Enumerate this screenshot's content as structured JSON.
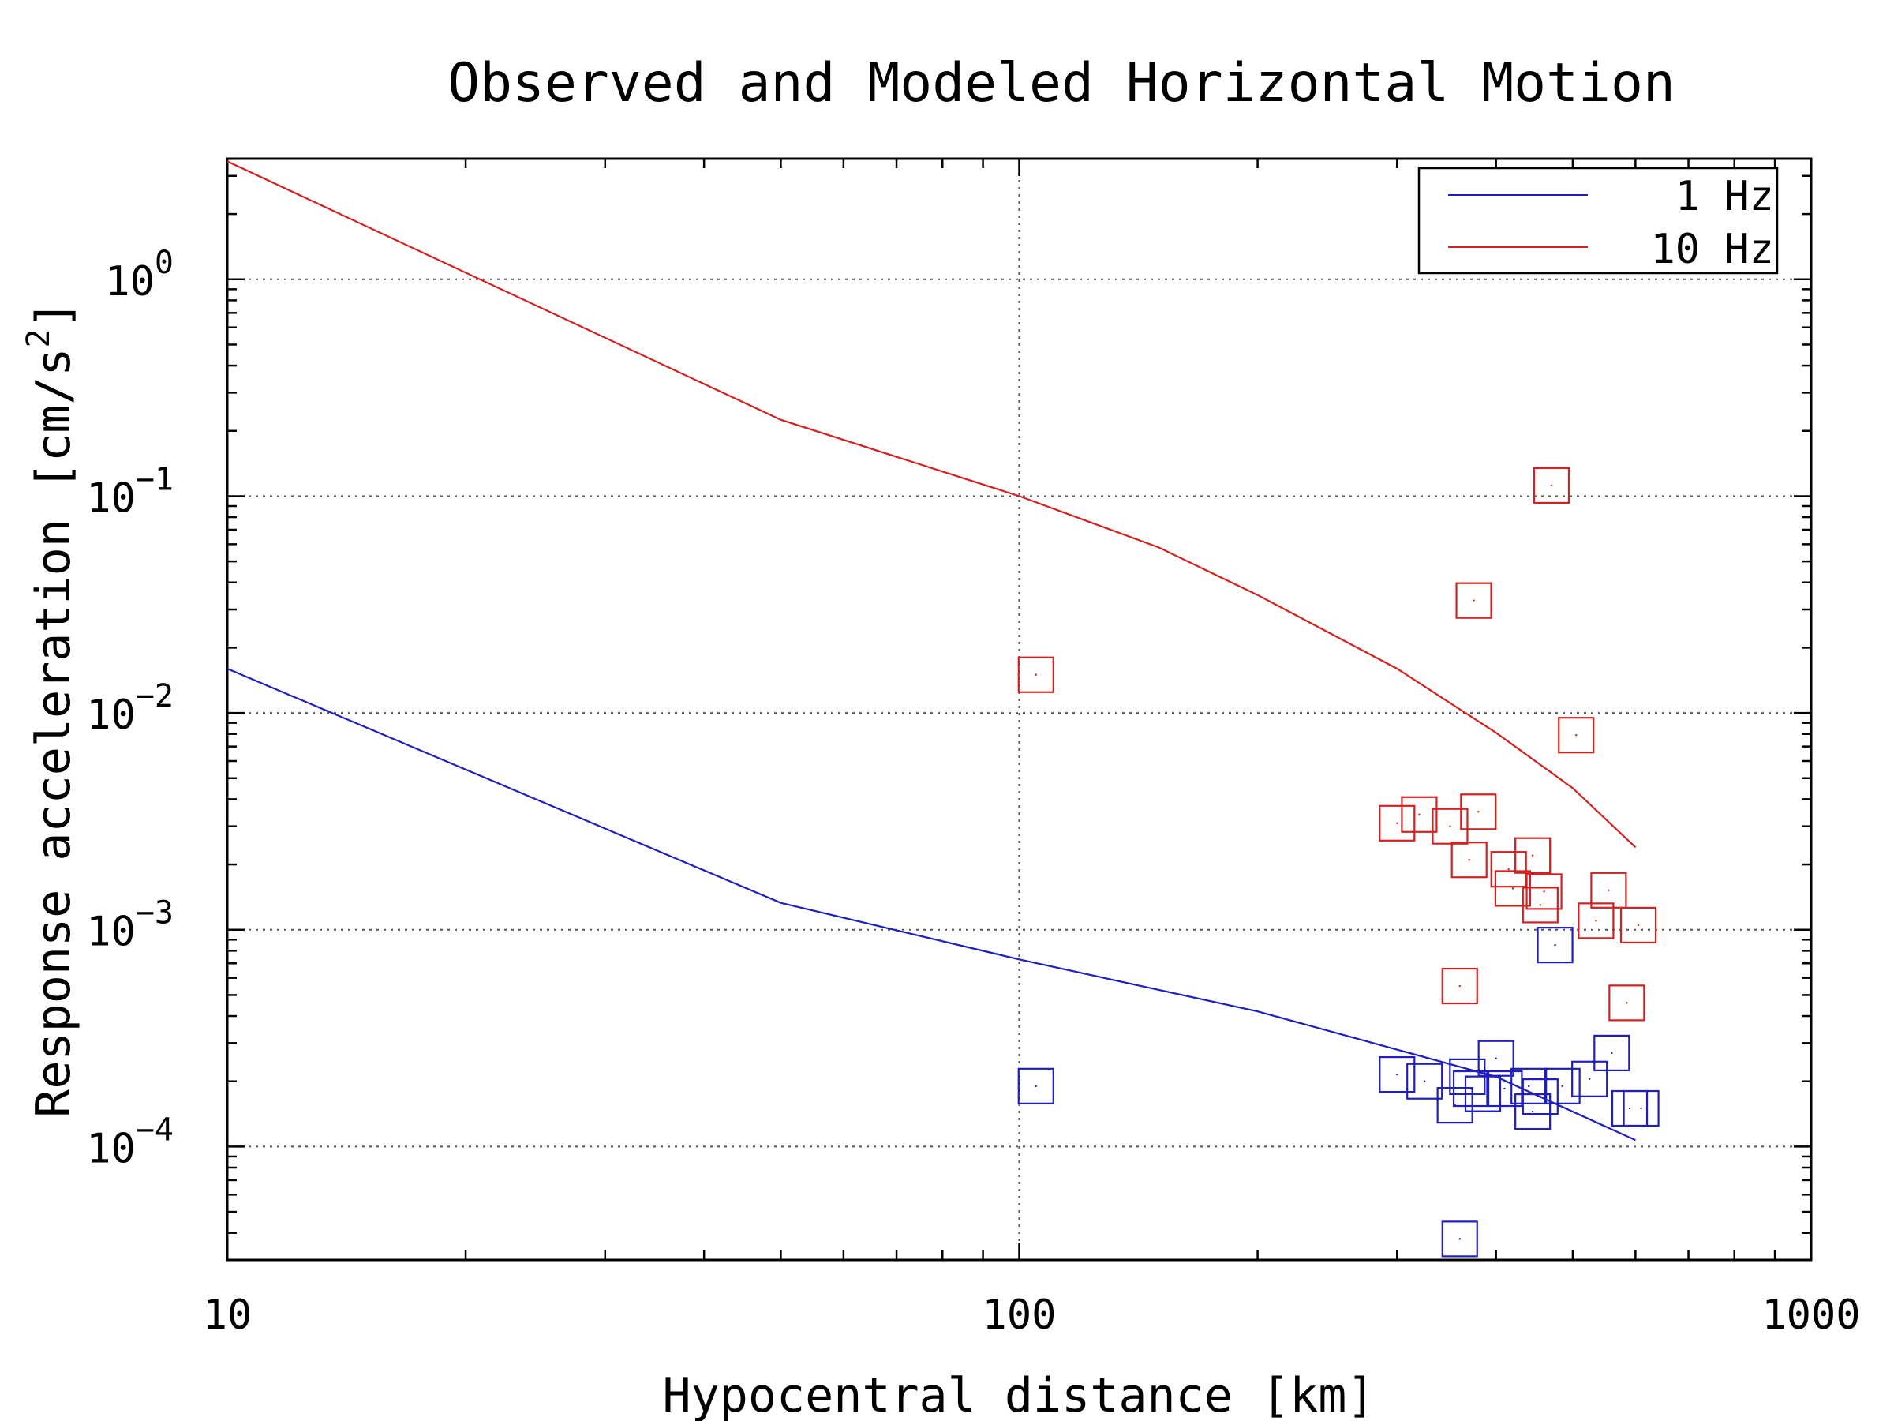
{
  "chart_data": {
    "type": "scatter",
    "title": "Observed and Modeled Horizontal Motion",
    "xlabel": "Hypocentral distance [km]",
    "ylabel_base": "Response acceleration [cm/s",
    "ylabel_sup": "2",
    "ylabel_end": "]",
    "xscale": "log",
    "yscale": "log",
    "xlim": [
      10,
      1000
    ],
    "ylim": [
      3e-05,
      3.6
    ],
    "grid": "dotted at major decades",
    "legend_position": "top-right",
    "x_ticks": [
      {
        "value": 10,
        "label": "10"
      },
      {
        "value": 100,
        "label": "100"
      },
      {
        "value": 1000,
        "label": "1000"
      }
    ],
    "y_ticks": [
      {
        "value": 1,
        "base": "10",
        "exp": "0"
      },
      {
        "value": 0.1,
        "base": "10",
        "exp": "−1"
      },
      {
        "value": 0.01,
        "base": "10",
        "exp": "−2"
      },
      {
        "value": 0.001,
        "base": "10",
        "exp": "−3"
      },
      {
        "value": 0.0001,
        "base": "10",
        "exp": "−4"
      }
    ],
    "series": [
      {
        "name": "1 Hz",
        "color": "#1f1fbf",
        "model_line": [
          [
            10,
            0.016
          ],
          [
            50,
            0.00133
          ],
          [
            100,
            0.00073
          ],
          [
            200,
            0.00042
          ],
          [
            400,
            0.00021
          ],
          [
            600,
            0.000107
          ]
        ],
        "observations": [
          [
            105,
            0.00019
          ],
          [
            300,
            0.000215
          ],
          [
            325,
            0.0002
          ],
          [
            355,
            0.000155
          ],
          [
            360,
            3.75e-05
          ],
          [
            368,
            0.00021
          ],
          [
            372,
            0.000185
          ],
          [
            385,
            0.000175
          ],
          [
            400,
            0.000255
          ],
          [
            410,
            0.000185
          ],
          [
            440,
            0.00019
          ],
          [
            445,
            0.000145
          ],
          [
            455,
            0.00017
          ],
          [
            475,
            0.00085
          ],
          [
            485,
            0.00019
          ],
          [
            525,
            0.000205
          ],
          [
            560,
            0.00027
          ],
          [
            590,
            0.00015
          ],
          [
            610,
            0.00015
          ]
        ]
      },
      {
        "name": "10 Hz",
        "color": "#d42020",
        "model_line": [
          [
            10,
            3.5
          ],
          [
            50,
            0.225
          ],
          [
            100,
            0.1
          ],
          [
            150,
            0.058
          ],
          [
            200,
            0.035
          ],
          [
            300,
            0.016
          ],
          [
            400,
            0.0081
          ],
          [
            500,
            0.0045
          ],
          [
            600,
            0.0024
          ]
        ],
        "observations": [
          [
            105,
            0.015
          ],
          [
            300,
            0.0031
          ],
          [
            320,
            0.0034
          ],
          [
            350,
            0.003
          ],
          [
            360,
            0.00055
          ],
          [
            370,
            0.0021
          ],
          [
            375,
            0.033
          ],
          [
            380,
            0.0035
          ],
          [
            415,
            0.0019
          ],
          [
            420,
            0.00155
          ],
          [
            445,
            0.0022
          ],
          [
            455,
            0.0013
          ],
          [
            460,
            0.0015
          ],
          [
            470,
            0.112
          ],
          [
            505,
            0.0079
          ],
          [
            535,
            0.0011
          ],
          [
            555,
            0.00152
          ],
          [
            585,
            0.00046
          ],
          [
            605,
            0.00105
          ]
        ]
      }
    ]
  }
}
